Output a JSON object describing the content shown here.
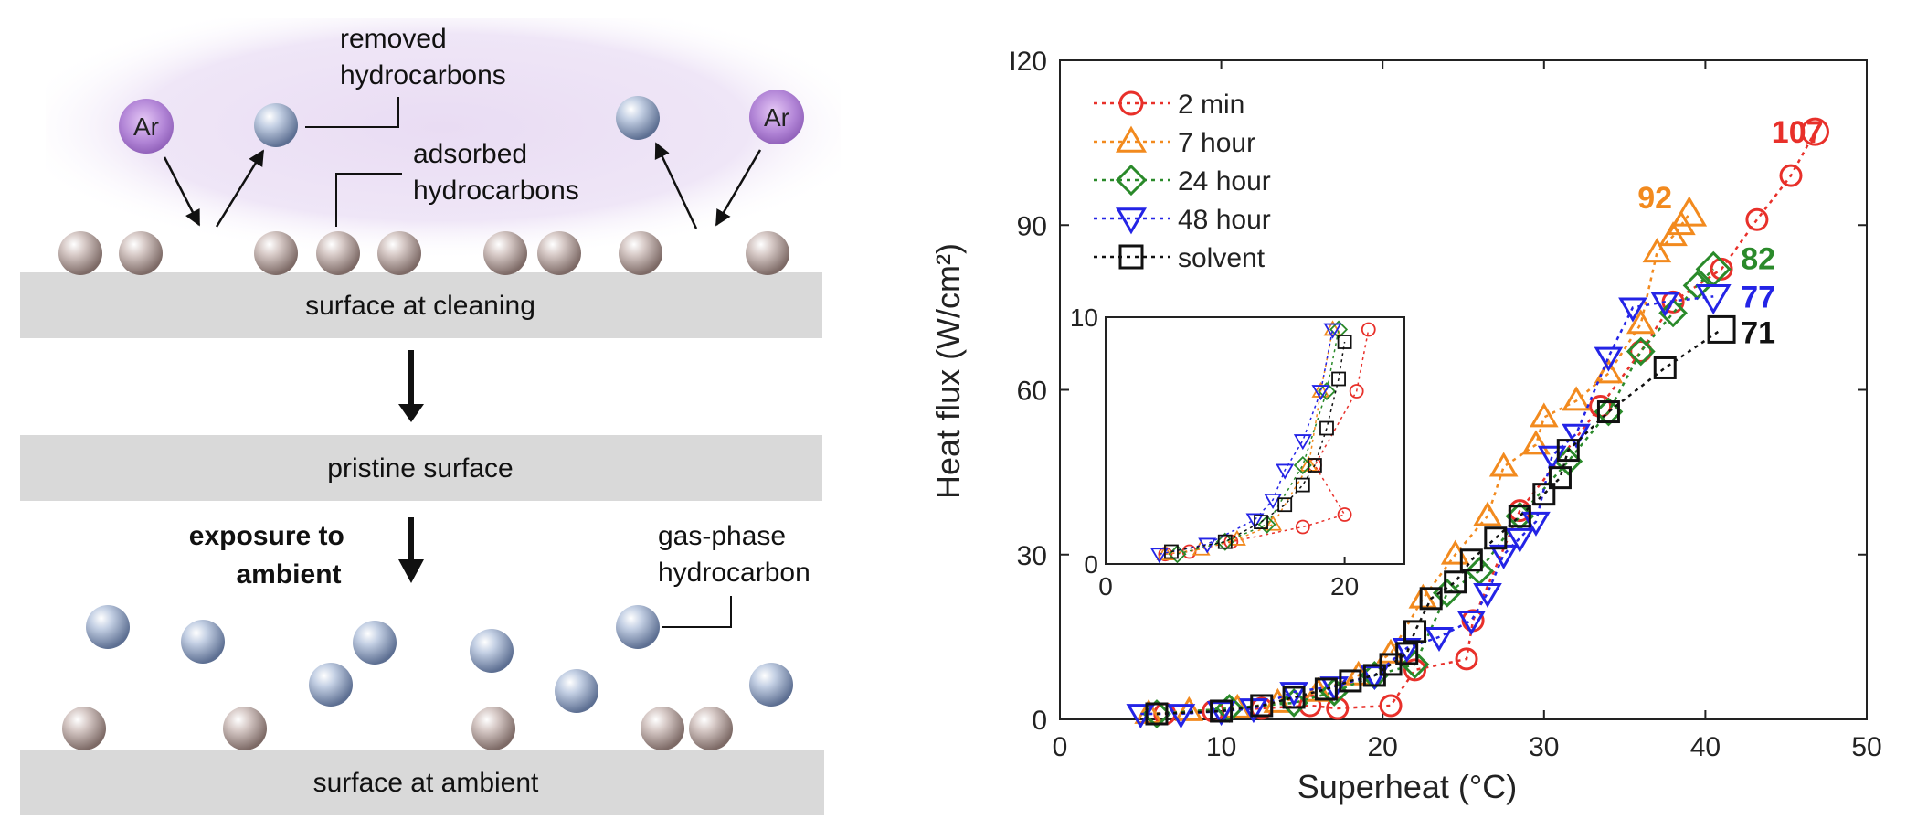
{
  "diagram": {
    "ar_label": "Ar",
    "removed_label": [
      "removed",
      "hydrocarbons"
    ],
    "adsorbed_label": [
      "adsorbed",
      "hydrocarbons"
    ],
    "surface_cleaning": "surface at cleaning",
    "pristine": "pristine surface",
    "exposure_label": [
      "exposure to",
      "ambient"
    ],
    "gas_phase_label": [
      "gas-phase",
      "hydrocarbon"
    ],
    "surface_ambient": "surface at ambient",
    "colors": {
      "adsorbed": "#9c8a86",
      "gas": "#7f93b5",
      "argon": "#a070c8",
      "plate": "#d9d9d9"
    }
  },
  "chart_data": {
    "type": "scatter",
    "xlabel": "Superheat (°C)",
    "ylabel": "Heat flux (W/cm²)",
    "xlim": [
      0,
      50
    ],
    "ylim": [
      0,
      120
    ],
    "xticks": [
      0,
      10,
      20,
      30,
      40,
      50
    ],
    "yticks": [
      0,
      30,
      60,
      90,
      120
    ],
    "xtick_labels": [
      "0",
      "10",
      "20",
      "30",
      "40",
      "50"
    ],
    "ytick_labels": [
      "0",
      "30",
      "60",
      "90",
      "I20"
    ],
    "legend_position": "top-left",
    "series": [
      {
        "name": "2 min",
        "marker": "circle",
        "color": "#e8302a",
        "x": [
          6.5,
          9.5,
          12.5,
          15.5,
          17.2,
          20.5,
          22.0,
          25.2,
          25.6,
          28.5,
          33.5,
          36.0,
          38.0,
          41.0,
          43.2,
          45.3,
          46.8
        ],
        "y": [
          1,
          1.5,
          2,
          2.5,
          2,
          2.5,
          9,
          11,
          18,
          38,
          57,
          67,
          76,
          82,
          91,
          99,
          107
        ]
      },
      {
        "name": "7 hour",
        "marker": "triangle-up",
        "color": "#f28a1e",
        "x": [
          5.5,
          8.0,
          11.0,
          13.5,
          16.0,
          18.5,
          20.5,
          22.5,
          24.5,
          26.5,
          27.5,
          29.5,
          30.0,
          32.0,
          34.0,
          36.0,
          37.0,
          38.0,
          38.5,
          39.0
        ],
        "y": [
          1,
          1.5,
          2,
          3,
          5,
          8,
          12,
          22,
          30,
          37,
          46,
          50,
          55,
          58,
          63,
          72,
          85,
          88,
          90,
          92
        ]
      },
      {
        "name": "24 hour",
        "marker": "diamond",
        "color": "#2a8a2a",
        "x": [
          6.0,
          10.5,
          14.5,
          17.0,
          19.5,
          22.0,
          24.0,
          26.0,
          28.5,
          31.5,
          34.0,
          36.0,
          38.0,
          39.5,
          40.5
        ],
        "y": [
          1,
          2,
          3,
          5,
          8,
          10,
          23,
          27,
          37,
          47,
          56,
          67,
          74,
          79,
          82
        ]
      },
      {
        "name": "48 hour",
        "marker": "triangle-down",
        "color": "#2424e6",
        "x": [
          5.0,
          7.5,
          10.0,
          12.0,
          14.5,
          17.0,
          19.5,
          21.5,
          23.5,
          25.5,
          26.5,
          27.5,
          28.5,
          29.5,
          30.5,
          32.0,
          34.0,
          35.5,
          37.5,
          40.5
        ],
        "y": [
          1,
          1,
          1.5,
          2,
          5,
          6,
          8,
          13,
          15,
          18,
          23,
          30,
          33,
          36,
          48,
          52,
          66,
          75,
          76,
          77
        ]
      },
      {
        "name": "solvent",
        "marker": "square",
        "color": "#111111",
        "x": [
          6.0,
          10.0,
          12.5,
          14.5,
          16.5,
          18.0,
          19.5,
          20.5,
          21.5,
          22.0,
          23.0,
          24.5,
          25.5,
          27.0,
          28.5,
          30.0,
          31.0,
          31.5,
          34.0,
          37.5,
          41.0
        ],
        "y": [
          1,
          1.5,
          2.5,
          4,
          5.5,
          7,
          8,
          10,
          12,
          16,
          22,
          25,
          29,
          33,
          37,
          41,
          44,
          49,
          56,
          64,
          71
        ]
      }
    ],
    "end_labels": [
      {
        "text": "107",
        "color": "#e8302a",
        "x": 44.1,
        "y": 107
      },
      {
        "text": "92",
        "color": "#f28a1e",
        "x": 35.8,
        "y": 95
      },
      {
        "text": "82",
        "color": "#2a8a2a",
        "x": 42.2,
        "y": 84
      },
      {
        "text": "77",
        "color": "#2424e6",
        "x": 42.2,
        "y": 77
      },
      {
        "text": "71",
        "color": "#111111",
        "x": 42.2,
        "y": 70.5
      }
    ],
    "inset": {
      "xlim": [
        0,
        25
      ],
      "ylim": [
        0,
        10
      ],
      "xtick_labels": [
        "0",
        "20"
      ],
      "ytick_labels": [
        "0",
        "10"
      ],
      "series": [
        {
          "name": "2 min",
          "marker": "circle",
          "color": "#e8302a",
          "x": [
            5,
            7,
            10.5,
            16.5,
            20,
            17.5,
            21,
            22
          ],
          "y": [
            0.4,
            0.5,
            0.9,
            1.5,
            2.0,
            4.0,
            7.0,
            9.5
          ]
        },
        {
          "name": "7 hour",
          "marker": "triangle-up",
          "color": "#f28a1e",
          "x": [
            5,
            8,
            11,
            14,
            17,
            18,
            19
          ],
          "y": [
            0.4,
            0.6,
            1.0,
            1.6,
            4.0,
            7.0,
            9.5
          ]
        },
        {
          "name": "24 hour",
          "marker": "diamond",
          "color": "#2a8a2a",
          "x": [
            6,
            10,
            13.5,
            16.5,
            18.5,
            19.5
          ],
          "y": [
            0.4,
            0.9,
            1.6,
            4.0,
            7.0,
            9.5
          ]
        },
        {
          "name": "48 hour",
          "marker": "triangle-down",
          "color": "#2424e6",
          "x": [
            4.5,
            8.5,
            12.5,
            14,
            15,
            16.5,
            18,
            19
          ],
          "y": [
            0.4,
            0.8,
            1.8,
            2.6,
            3.8,
            5.0,
            7.0,
            9.5
          ]
        },
        {
          "name": "solvent",
          "marker": "square",
          "color": "#111111",
          "x": [
            5.5,
            10,
            13,
            15,
            16.5,
            17.5,
            18.5,
            19.5,
            20
          ],
          "y": [
            0.5,
            0.9,
            1.7,
            2.4,
            3.2,
            4.0,
            5.5,
            7.5,
            9.0
          ]
        }
      ]
    }
  }
}
